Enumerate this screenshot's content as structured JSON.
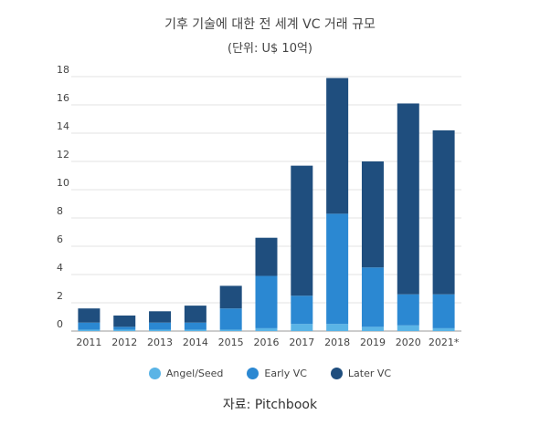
{
  "chart_data": {
    "type": "bar",
    "stacked": true,
    "title": "기후 기술에 대한 전 세계 VC 거래 규모",
    "subtitle": "(단위: U$ 10억)",
    "xlabel": "",
    "ylabel": "",
    "categories": [
      "2011",
      "2012",
      "2013",
      "2014",
      "2015",
      "2016",
      "2017",
      "2018",
      "2019",
      "2020",
      "2021*"
    ],
    "ylim": [
      0,
      18
    ],
    "yticks": [
      "0",
      "2",
      "4",
      "6",
      "8",
      "10",
      "12",
      "14",
      "16",
      "18"
    ],
    "grid": true,
    "legend_position": "bottom",
    "series": [
      {
        "name": "Angel/Seed",
        "color": "#5ab4e6",
        "values": [
          0.1,
          0.1,
          0.1,
          0.1,
          0.1,
          0.2,
          0.5,
          0.5,
          0.3,
          0.4,
          0.2
        ]
      },
      {
        "name": "Early VC",
        "color": "#2b88d2",
        "values": [
          0.5,
          0.2,
          0.5,
          0.5,
          1.5,
          3.7,
          2.0,
          7.8,
          4.2,
          2.2,
          2.4
        ]
      },
      {
        "name": "Later VC",
        "color": "#1f4e7e",
        "values": [
          1.0,
          0.8,
          0.8,
          1.2,
          1.6,
          2.7,
          9.2,
          9.6,
          7.5,
          13.5,
          11.6
        ]
      }
    ],
    "source": "자료: Pitchbook"
  }
}
